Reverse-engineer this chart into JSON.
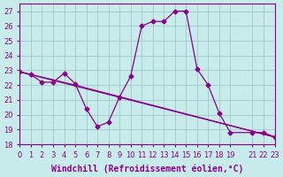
{
  "xlabel": "Windchill (Refroidissement éolien,°C)",
  "ylabel": "",
  "background_color": "#c8ecec",
  "line_color": "#8b008b",
  "grid_color": "#a0c8c8",
  "x_ticks": [
    0,
    1,
    2,
    3,
    4,
    5,
    6,
    7,
    8,
    9,
    10,
    11,
    12,
    13,
    14,
    15,
    16,
    17,
    18,
    19,
    21,
    22,
    23
  ],
  "xlim": [
    0,
    23
  ],
  "ylim": [
    18,
    27.5
  ],
  "y_ticks": [
    18,
    19,
    20,
    21,
    22,
    23,
    24,
    25,
    26,
    27
  ],
  "curve1_x": [
    0,
    1,
    2,
    3,
    4,
    5,
    6,
    7,
    8,
    9,
    10,
    11,
    12,
    13,
    14,
    15,
    16,
    17,
    18,
    19,
    21,
    22,
    23
  ],
  "curve1_y": [
    22.9,
    22.7,
    22.2,
    22.2,
    22.8,
    22.1,
    20.4,
    19.2,
    19.5,
    21.2,
    22.6,
    26.0,
    26.3,
    26.3,
    27.0,
    27.0,
    23.1,
    22.0,
    20.1,
    18.8,
    18.8,
    18.8,
    18.5
  ],
  "curve2_x": [
    0,
    5,
    23
  ],
  "curve2_y": [
    22.9,
    22.0,
    18.5
  ],
  "curve3_x": [
    0,
    23
  ],
  "curve3_y": [
    22.9,
    18.5
  ],
  "tick_fontsize": 6,
  "label_fontsize": 7
}
